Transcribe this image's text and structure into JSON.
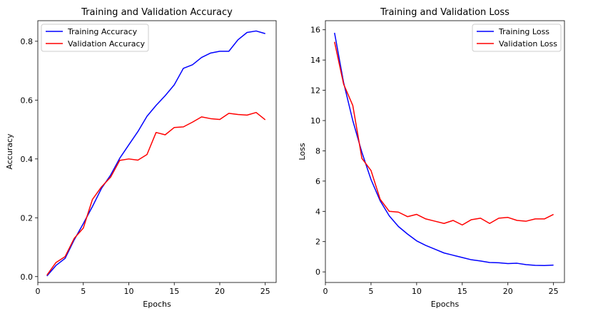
{
  "colors": {
    "training": "#0000ff",
    "validation": "#ff0000",
    "axes": "#000000",
    "legend_border": "#cccccc"
  },
  "chart_data": [
    {
      "type": "line",
      "title": "Training and Validation Accuracy",
      "xlabel": "Epochs",
      "ylabel": "Accuracy",
      "xlim": [
        0,
        26.2
      ],
      "ylim": [
        -0.02,
        0.87
      ],
      "xticks": [
        0,
        5,
        10,
        15,
        20,
        25
      ],
      "yticks": [
        0.0,
        0.2,
        0.4,
        0.6,
        0.8
      ],
      "ytick_labels": [
        "0.0",
        "0.2",
        "0.4",
        "0.6",
        "0.8"
      ],
      "grid": false,
      "legend_position": "upper-left",
      "x": [
        1,
        2,
        3,
        4,
        5,
        6,
        7,
        8,
        9,
        10,
        11,
        12,
        13,
        14,
        15,
        16,
        17,
        18,
        19,
        20,
        21,
        22,
        23,
        24,
        25
      ],
      "series": [
        {
          "name": "Training Accuracy",
          "color": "#0000ff",
          "values": [
            0.002,
            0.038,
            0.062,
            0.125,
            0.18,
            0.238,
            0.3,
            0.345,
            0.402,
            0.448,
            0.493,
            0.545,
            0.582,
            0.615,
            0.652,
            0.708,
            0.72,
            0.745,
            0.76,
            0.766,
            0.766,
            0.805,
            0.83,
            0.835,
            0.826
          ]
        },
        {
          "name": "Validation Accuracy",
          "color": "#ff0000",
          "values": [
            0.005,
            0.048,
            0.068,
            0.13,
            0.165,
            0.262,
            0.305,
            0.338,
            0.395,
            0.4,
            0.396,
            0.415,
            0.49,
            0.482,
            0.507,
            0.509,
            0.525,
            0.543,
            0.537,
            0.534,
            0.555,
            0.551,
            0.549,
            0.558,
            0.533
          ]
        }
      ]
    },
    {
      "type": "line",
      "title": "Training and Validation Loss",
      "xlabel": "Epochs",
      "ylabel": "Loss",
      "xlim": [
        0,
        26.2
      ],
      "ylim": [
        -0.7,
        16.6
      ],
      "xticks": [
        0,
        5,
        10,
        15,
        20,
        25
      ],
      "yticks": [
        0,
        2,
        4,
        6,
        8,
        10,
        12,
        14,
        16
      ],
      "ytick_labels": [
        "0",
        "2",
        "4",
        "6",
        "8",
        "10",
        "12",
        "14",
        "16"
      ],
      "grid": false,
      "legend_position": "upper-right",
      "x": [
        1,
        2,
        3,
        4,
        5,
        6,
        7,
        8,
        9,
        10,
        11,
        12,
        13,
        14,
        15,
        16,
        17,
        18,
        19,
        20,
        21,
        22,
        23,
        24,
        25
      ],
      "series": [
        {
          "name": "Training Loss",
          "color": "#0000ff",
          "values": [
            15.8,
            12.5,
            10.0,
            7.9,
            6.1,
            4.7,
            3.7,
            3.0,
            2.5,
            2.05,
            1.75,
            1.5,
            1.25,
            1.1,
            0.95,
            0.8,
            0.72,
            0.62,
            0.6,
            0.55,
            0.57,
            0.48,
            0.43,
            0.42,
            0.45
          ]
        },
        {
          "name": "Validation Loss",
          "color": "#ff0000",
          "values": [
            15.2,
            12.4,
            11.0,
            7.5,
            6.7,
            4.8,
            4.0,
            3.95,
            3.65,
            3.8,
            3.5,
            3.35,
            3.2,
            3.4,
            3.1,
            3.45,
            3.55,
            3.2,
            3.55,
            3.6,
            3.4,
            3.35,
            3.5,
            3.5,
            3.8
          ]
        }
      ]
    }
  ]
}
